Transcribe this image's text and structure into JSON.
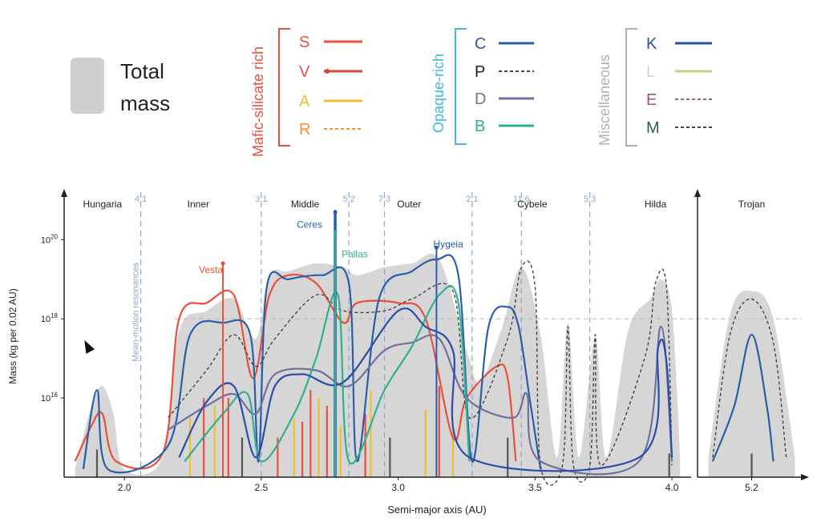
{
  "legend": {
    "total_mass": {
      "line1": "Total",
      "line2": "mass"
    },
    "groups": [
      {
        "title": "Mafic-silicate rich",
        "color": "#e8503c",
        "entries": [
          {
            "label": "S",
            "label_color": "#e8503c",
            "line_color": "#e8503c",
            "style": "solid"
          },
          {
            "label": "V",
            "label_color": "#e8503c",
            "line_color": "#d9443a",
            "style": "dot-end"
          },
          {
            "label": "A",
            "label_color": "#f0c030",
            "line_color": "#f0c030",
            "style": "solid"
          },
          {
            "label": "R",
            "label_color": "#f09030",
            "line_color": "#f09030",
            "style": "dashed"
          }
        ]
      },
      {
        "title": "Opaque-rich",
        "color": "#40b8e0",
        "entries": [
          {
            "label": "C",
            "label_color": "#2a5ea8",
            "line_color": "#2a5ea8",
            "style": "solid"
          },
          {
            "label": "P",
            "label_color": "#222222",
            "line_color": "#444444",
            "style": "dashed"
          },
          {
            "label": "D",
            "label_color": "#7070a0",
            "line_color": "#7070a0",
            "style": "solid"
          },
          {
            "label": "B",
            "label_color": "#30b090",
            "line_color": "#30b090",
            "style": "solid"
          }
        ]
      },
      {
        "title": "Miscellaneous",
        "color": "#b0b0b0",
        "entries": [
          {
            "label": "K",
            "label_color": "#2a4ea8",
            "line_color": "#2a4ea8",
            "style": "solid"
          },
          {
            "label": "L",
            "label_color": "#d8d0c0",
            "line_color": "#c8d080",
            "style": "solid"
          },
          {
            "label": "E",
            "label_color": "#a05070",
            "line_color": "#a06080",
            "style": "dashed"
          },
          {
            "label": "M",
            "label_color": "#306040",
            "line_color": "#444444",
            "style": "dashed"
          }
        ]
      }
    ]
  },
  "chart_data": {
    "type": "area",
    "xlabel": "Semi-major axis (AU)",
    "ylabel": "Mass (kg per 0.02 AU)",
    "x_ticks": [
      "2.0",
      "2.5",
      "3.0",
      "3.5",
      "4.0"
    ],
    "trojan_tick": "5.2",
    "y_ticks": [
      {
        "value": 16,
        "label": "10^16"
      },
      {
        "value": 18,
        "label": "10^18"
      },
      {
        "value": 20,
        "label": "10^20"
      }
    ],
    "xlim": [
      1.78,
      4.07
    ],
    "ylim": [
      14,
      21.2
    ],
    "reference_line_log_mass": 18,
    "resonances": [
      {
        "x": 2.06,
        "label": "4:1"
      },
      {
        "x": 2.5,
        "label": "3:1"
      },
      {
        "x": 2.82,
        "label": "5:2"
      },
      {
        "x": 2.95,
        "label": "7:3"
      },
      {
        "x": 3.27,
        "label": "2:1"
      },
      {
        "x": 3.45,
        "label": "11:6"
      },
      {
        "x": 3.7,
        "label": "5:3"
      }
    ],
    "resonance_note": "Mean-motion resonances",
    "regions": [
      {
        "label": "Hungaria",
        "x": 1.92
      },
      {
        "label": "Inner",
        "x": 2.27
      },
      {
        "label": "Middle",
        "x": 2.66
      },
      {
        "label": "Outer",
        "x": 3.04
      },
      {
        "label": "Cybele",
        "x": 3.49
      },
      {
        "label": "Hilda",
        "x": 3.94
      }
    ],
    "trojan_region": "Trojan",
    "named_bodies": [
      {
        "label": "Vesta",
        "x": 2.36,
        "log_mass": 19.4,
        "color": "#e8503c"
      },
      {
        "label": "Ceres",
        "x": 2.77,
        "log_mass": 20.7,
        "color": "#2a5ea8"
      },
      {
        "label": "Pallas",
        "x": 2.77,
        "log_mass": 20.2,
        "color": "#30b090"
      },
      {
        "label": "Hygeia",
        "x": 3.14,
        "log_mass": 19.8,
        "color": "#2a5ea8"
      }
    ],
    "series": [
      {
        "name": "Total mass",
        "color": "#c8c8c8",
        "x": [
          1.82,
          1.88,
          1.92,
          1.96,
          2.0,
          2.14,
          2.2,
          2.3,
          2.4,
          2.48,
          2.53,
          2.6,
          2.7,
          2.8,
          2.85,
          2.95,
          3.05,
          3.15,
          3.25,
          3.3,
          3.38,
          3.45,
          3.52,
          3.58,
          3.62,
          3.66,
          3.72,
          3.76,
          3.84,
          3.92,
          3.96,
          4.0,
          4.03
        ],
        "log_mass": [
          14.2,
          15.8,
          16.3,
          15.6,
          14.2,
          14.5,
          17.7,
          18.2,
          18.5,
          17.5,
          19.1,
          19.2,
          19.4,
          19.3,
          19.1,
          19.3,
          19.4,
          19.5,
          17.2,
          16.4,
          17.8,
          19.3,
          17.6,
          14.5,
          17.9,
          14.5,
          17.5,
          14.5,
          17.7,
          18.5,
          19.0,
          18.2,
          14.5
        ]
      },
      {
        "name": "S",
        "color": "#e8503c",
        "x": [
          1.82,
          1.88,
          1.92,
          1.97,
          2.14,
          2.2,
          2.3,
          2.4,
          2.47,
          2.53,
          2.6,
          2.7,
          2.8,
          2.85,
          3.0,
          3.1,
          3.2,
          3.25,
          3.36,
          3.4,
          3.43
        ],
        "log_mass": [
          14.4,
          15.3,
          15.6,
          14.4,
          14.6,
          18.0,
          18.4,
          18.6,
          16.5,
          18.6,
          19.1,
          18.9,
          17.9,
          18.4,
          18.4,
          18.0,
          15.0,
          16.0,
          16.8,
          16.5,
          14.4
        ]
      },
      {
        "name": "C",
        "color": "#2a5ea8",
        "x": [
          1.85,
          1.9,
          1.94,
          2.16,
          2.24,
          2.36,
          2.46,
          2.49,
          2.52,
          2.6,
          2.72,
          2.82,
          2.85,
          2.93,
          3.05,
          3.14,
          3.22,
          3.27,
          3.33,
          3.4,
          3.44,
          3.48,
          3.52
        ],
        "log_mass": [
          14.2,
          16.2,
          14.2,
          14.8,
          17.6,
          17.9,
          17.6,
          14.4,
          18.8,
          19.0,
          19.1,
          18.9,
          14.4,
          18.5,
          19.2,
          19.5,
          19.1,
          14.4,
          17.8,
          18.3,
          17.8,
          16.0,
          14.2
        ]
      },
      {
        "name": "P",
        "color": "#444444",
        "x": [
          2.16,
          2.3,
          2.4,
          2.48,
          2.55,
          2.7,
          2.8,
          2.95,
          3.05,
          3.2,
          3.26,
          3.4,
          3.45,
          3.5,
          3.52,
          3.6,
          3.62,
          3.64,
          3.7,
          3.72,
          3.74,
          3.9,
          3.94,
          3.98,
          4.0
        ],
        "log_mass": [
          15.5,
          16.7,
          17.6,
          16.8,
          17.5,
          18.6,
          18.2,
          18.2,
          18.5,
          18.7,
          15.5,
          17.5,
          19.3,
          18.8,
          14.3,
          14.3,
          17.8,
          14.3,
          14.3,
          17.6,
          14.3,
          17.0,
          18.9,
          18.8,
          14.3
        ]
      },
      {
        "name": "D",
        "color": "#7070a0",
        "x": [
          2.16,
          2.3,
          2.4,
          2.48,
          2.55,
          2.7,
          2.82,
          2.95,
          3.05,
          3.15,
          3.25,
          3.42,
          3.47,
          3.52,
          3.88,
          3.96,
          4.0
        ],
        "log_mass": [
          15.2,
          15.8,
          16.1,
          15.6,
          16.6,
          16.7,
          16.3,
          17.2,
          17.4,
          17.5,
          16.0,
          15.5,
          16.1,
          14.4,
          14.4,
          17.8,
          14.4
        ]
      },
      {
        "name": "B",
        "color": "#30b090",
        "x": [
          2.22,
          2.36,
          2.45,
          2.5,
          2.62,
          2.7,
          2.78,
          2.82,
          2.95,
          3.05,
          3.15,
          3.22,
          3.26
        ],
        "log_mass": [
          14.4,
          15.6,
          16.1,
          14.4,
          15.6,
          17.0,
          18.6,
          14.4,
          16.2,
          17.3,
          18.6,
          18.4,
          14.4
        ]
      },
      {
        "name": "K",
        "color": "#2a4ea8",
        "x": [
          2.2,
          2.3,
          2.4,
          2.48,
          2.55,
          2.65,
          2.8,
          3.0,
          3.1,
          3.2,
          3.26,
          3.88,
          3.95,
          3.98,
          4.0
        ],
        "log_mass": [
          14.5,
          15.9,
          16.3,
          14.5,
          16.3,
          16.6,
          16.4,
          18.2,
          17.8,
          17.2,
          14.5,
          14.5,
          17.3,
          16.9,
          14.5
        ]
      }
    ],
    "trojan_series": [
      {
        "name": "Total mass",
        "color": "#c8c8c8",
        "x": [
          5.0,
          5.1,
          5.2,
          5.3,
          5.4
        ],
        "log_mass": [
          14.5,
          18.1,
          18.7,
          18.0,
          14.5
        ]
      },
      {
        "name": "P",
        "color": "#444444",
        "x": [
          5.02,
          5.1,
          5.2,
          5.3,
          5.36
        ],
        "log_mass": [
          14.5,
          17.6,
          18.5,
          17.4,
          14.5
        ]
      },
      {
        "name": "C",
        "color": "#2a5ea8",
        "x": [
          5.02,
          5.12,
          5.2,
          5.27,
          5.3
        ],
        "log_mass": [
          14.4,
          15.8,
          17.6,
          15.8,
          14.4
        ]
      }
    ],
    "trojan_xlim": [
      4.95,
      5.45
    ],
    "spikes": [
      {
        "x": 1.9,
        "log_mass": 14.7,
        "color": "#555555"
      },
      {
        "x": 2.24,
        "log_mass": 15.5,
        "color": "#f0c030"
      },
      {
        "x": 2.29,
        "log_mass": 16.0,
        "color": "#e8503c"
      },
      {
        "x": 2.33,
        "log_mass": 15.8,
        "color": "#f0c030"
      },
      {
        "x": 2.38,
        "log_mass": 16.0,
        "color": "#e8503c"
      },
      {
        "x": 2.43,
        "log_mass": 15.0,
        "color": "#555555"
      },
      {
        "x": 2.56,
        "log_mass": 15.0,
        "color": "#e8503c"
      },
      {
        "x": 2.62,
        "log_mass": 15.5,
        "color": "#f0c030"
      },
      {
        "x": 2.65,
        "log_mass": 15.4,
        "color": "#e8503c"
      },
      {
        "x": 2.68,
        "log_mass": 16.2,
        "color": "#e8503c"
      },
      {
        "x": 2.71,
        "log_mass": 16.0,
        "color": "#f0c030"
      },
      {
        "x": 2.74,
        "log_mass": 15.8,
        "color": "#e8503c"
      },
      {
        "x": 2.79,
        "log_mass": 15.3,
        "color": "#f0c030"
      },
      {
        "x": 2.88,
        "log_mass": 15.6,
        "color": "#e8503c"
      },
      {
        "x": 2.9,
        "log_mass": 16.2,
        "color": "#f0c030"
      },
      {
        "x": 2.97,
        "log_mass": 15.0,
        "color": "#555555"
      },
      {
        "x": 3.1,
        "log_mass": 15.7,
        "color": "#f0c030"
      },
      {
        "x": 3.15,
        "log_mass": 16.3,
        "color": "#e8503c"
      },
      {
        "x": 3.2,
        "log_mass": 15.2,
        "color": "#f0c030"
      },
      {
        "x": 3.4,
        "log_mass": 15.0,
        "color": "#555555"
      },
      {
        "x": 3.99,
        "log_mass": 14.6,
        "color": "#555555"
      },
      {
        "x": 5.2,
        "log_mass": 14.6,
        "color": "#555555"
      }
    ]
  }
}
